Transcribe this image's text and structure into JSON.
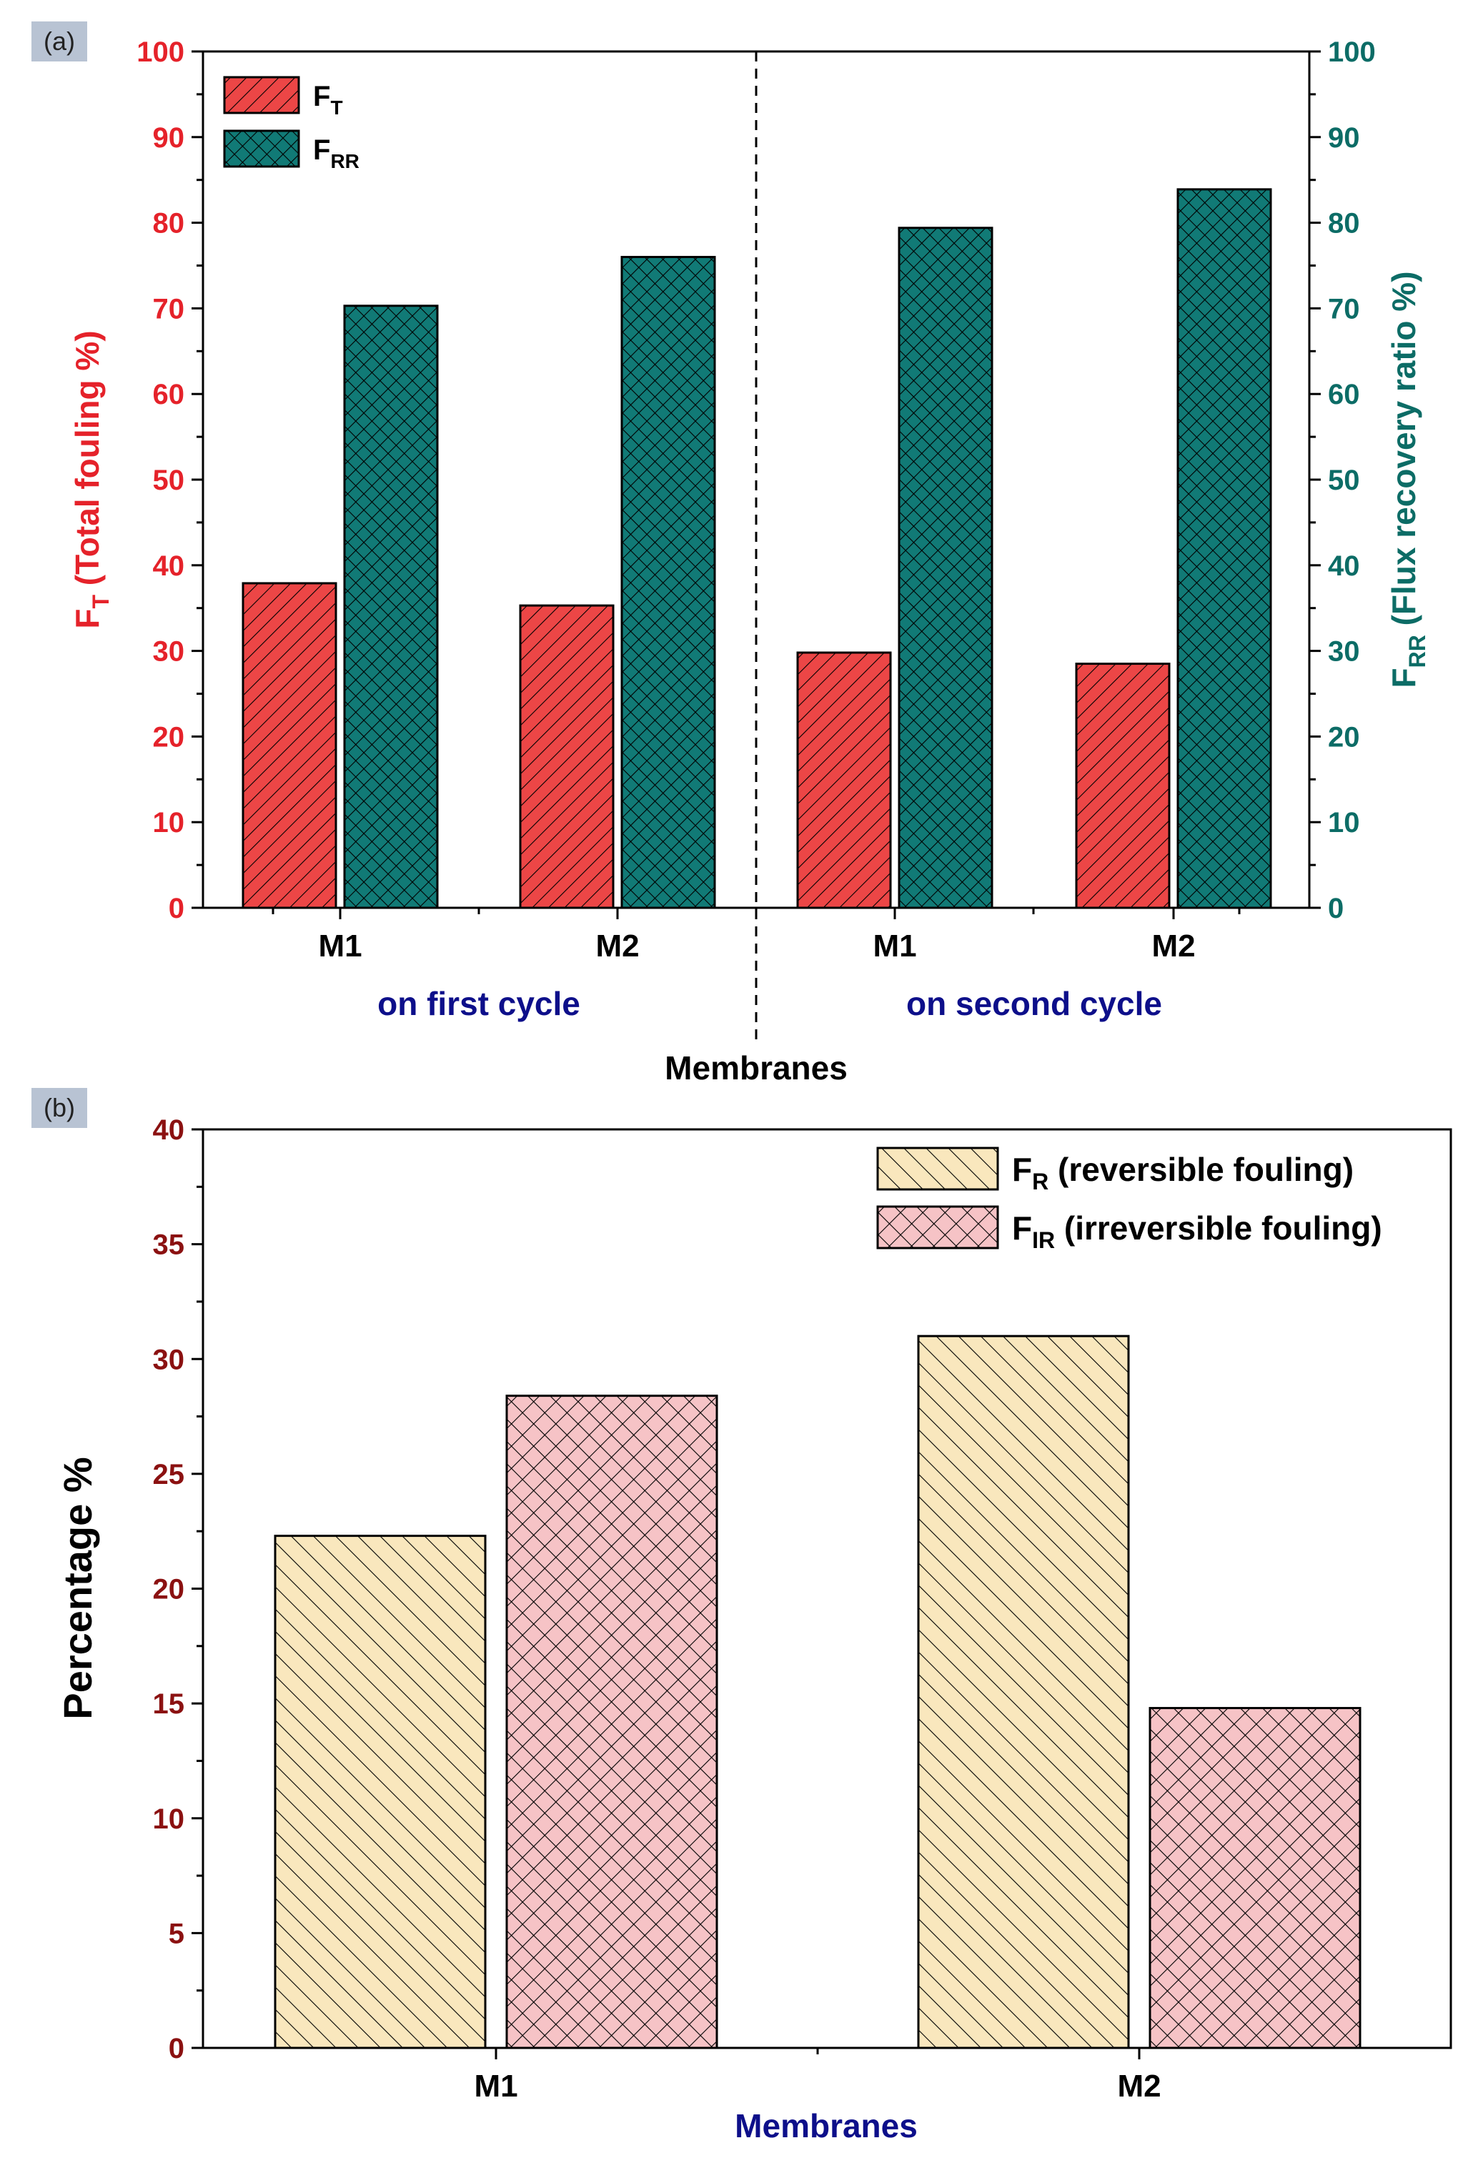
{
  "colors": {
    "ft": "#ec4646",
    "frr": "#117a76",
    "fr": "#f9e7bd",
    "fir": "#f6c3c6",
    "left_axis_a": "#e5222a",
    "right_axis_a": "#0c6c66",
    "axis_b": "#8b1111",
    "navy": "#0d0f8a",
    "panel_label_bg": "#b8c3d3"
  },
  "chart_data": [
    {
      "panel": "(a)",
      "type": "bar",
      "categories": [
        "M1",
        "M2",
        "M1",
        "M2"
      ],
      "groups": [
        {
          "label": "on first cycle",
          "categories": [
            "M1",
            "M2"
          ]
        },
        {
          "label": "on second cycle",
          "categories": [
            "M1",
            "M2"
          ]
        }
      ],
      "series": [
        {
          "name": "F",
          "sub": "T",
          "axis": "left",
          "values": [
            37.9,
            35.3,
            29.8,
            28.5
          ]
        },
        {
          "name": "F",
          "sub": "RR",
          "axis": "right",
          "values": [
            70.3,
            76.0,
            79.4,
            83.9
          ]
        }
      ],
      "ylabel_left": {
        "prefix": "F",
        "sub": "T",
        "rest": " (Total fouling %)"
      },
      "ylabel_right": {
        "prefix": "F",
        "sub": "RR",
        "rest": " (Flux recovery ratio %)"
      },
      "xlabel": "Membranes",
      "ylim_left": [
        0,
        100
      ],
      "ylim_right": [
        0,
        100
      ],
      "yticks_left": [
        0,
        10,
        20,
        30,
        40,
        50,
        60,
        70,
        80,
        90,
        100
      ],
      "yticks_right": [
        0,
        10,
        20,
        30,
        40,
        50,
        60,
        70,
        80,
        90,
        100
      ],
      "legend_position": "top-left",
      "grid": false
    },
    {
      "panel": "(b)",
      "type": "bar",
      "categories": [
        "M1",
        "M2"
      ],
      "series": [
        {
          "name": "F",
          "sub": "R",
          "desc": " (reversible fouling)",
          "values": [
            22.3,
            31.0
          ]
        },
        {
          "name": "F",
          "sub": "IR",
          "desc": " (irreversible fouling)",
          "values": [
            28.4,
            14.8
          ]
        }
      ],
      "ylabel": "Percentage %",
      "xlabel": "Membranes",
      "ylim": [
        0,
        40
      ],
      "yticks": [
        0,
        5,
        10,
        15,
        20,
        25,
        30,
        35,
        40
      ],
      "legend_position": "top-right",
      "grid": false
    }
  ]
}
